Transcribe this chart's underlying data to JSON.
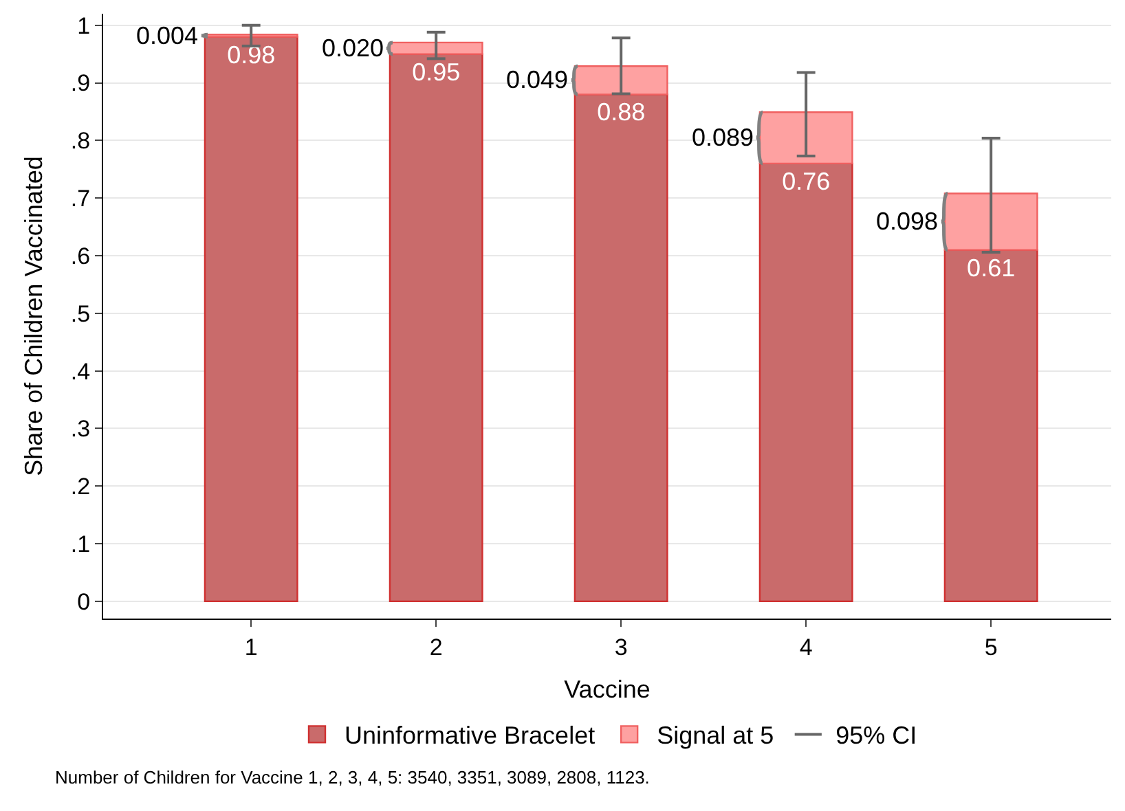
{
  "chart_data": {
    "type": "bar",
    "stacked": true,
    "xlabel": "Vaccine",
    "ylabel": "Share of Children Vaccinated",
    "categories": [
      "1",
      "2",
      "3",
      "4",
      "5"
    ],
    "series": [
      {
        "name": "Uninformative Bracelet",
        "color": "#c96b6b",
        "values": [
          0.98,
          0.95,
          0.88,
          0.76,
          0.61
        ],
        "value_labels": [
          "0.98",
          "0.95",
          "0.88",
          "0.76",
          "0.61"
        ]
      },
      {
        "name": "Signal at 5",
        "color": "#fea1a1",
        "values": [
          0.004,
          0.02,
          0.049,
          0.089,
          0.098
        ],
        "errors": [
          [
            0.964,
            1.0
          ],
          [
            0.942,
            0.988
          ],
          [
            0.881,
            0.978
          ],
          [
            0.773,
            0.918
          ],
          [
            0.606,
            0.804
          ]
        ]
      }
    ],
    "ylim": [
      -0.03,
      1.02
    ],
    "yticks": [
      0,
      {
        "value": 0.1,
        "label": ".1"
      },
      {
        "value": 0.2,
        "label": ".2"
      },
      {
        "value": 0.3,
        "label": ".3"
      },
      {
        "value": 0.4,
        "label": ".4"
      },
      {
        "value": 0.5,
        "label": ".5"
      },
      {
        "value": 0.6,
        "label": ".6"
      },
      {
        "value": 0.7,
        "label": ".7"
      },
      {
        "value": 0.8,
        "label": ".8"
      },
      {
        "value": 0.9,
        "label": ".9"
      },
      1
    ],
    "grid": "y",
    "legend": "bottom",
    "annotations": [
      {
        "text": "0.004",
        "x": "1",
        "y": 0.982
      },
      {
        "text": "0.020",
        "x": "2",
        "y": 0.96
      },
      {
        "text": "0.049",
        "x": "3",
        "y": 0.905
      },
      {
        "text": "0.089",
        "x": "4",
        "y": 0.805
      },
      {
        "text": "0.098",
        "x": "5",
        "y": 0.659
      },
      "95% CI",
      "Number of Children for Vaccine 1, 2, 3, 4, 5: 3540, 3351, 3089, 2808, 1123."
    ]
  }
}
